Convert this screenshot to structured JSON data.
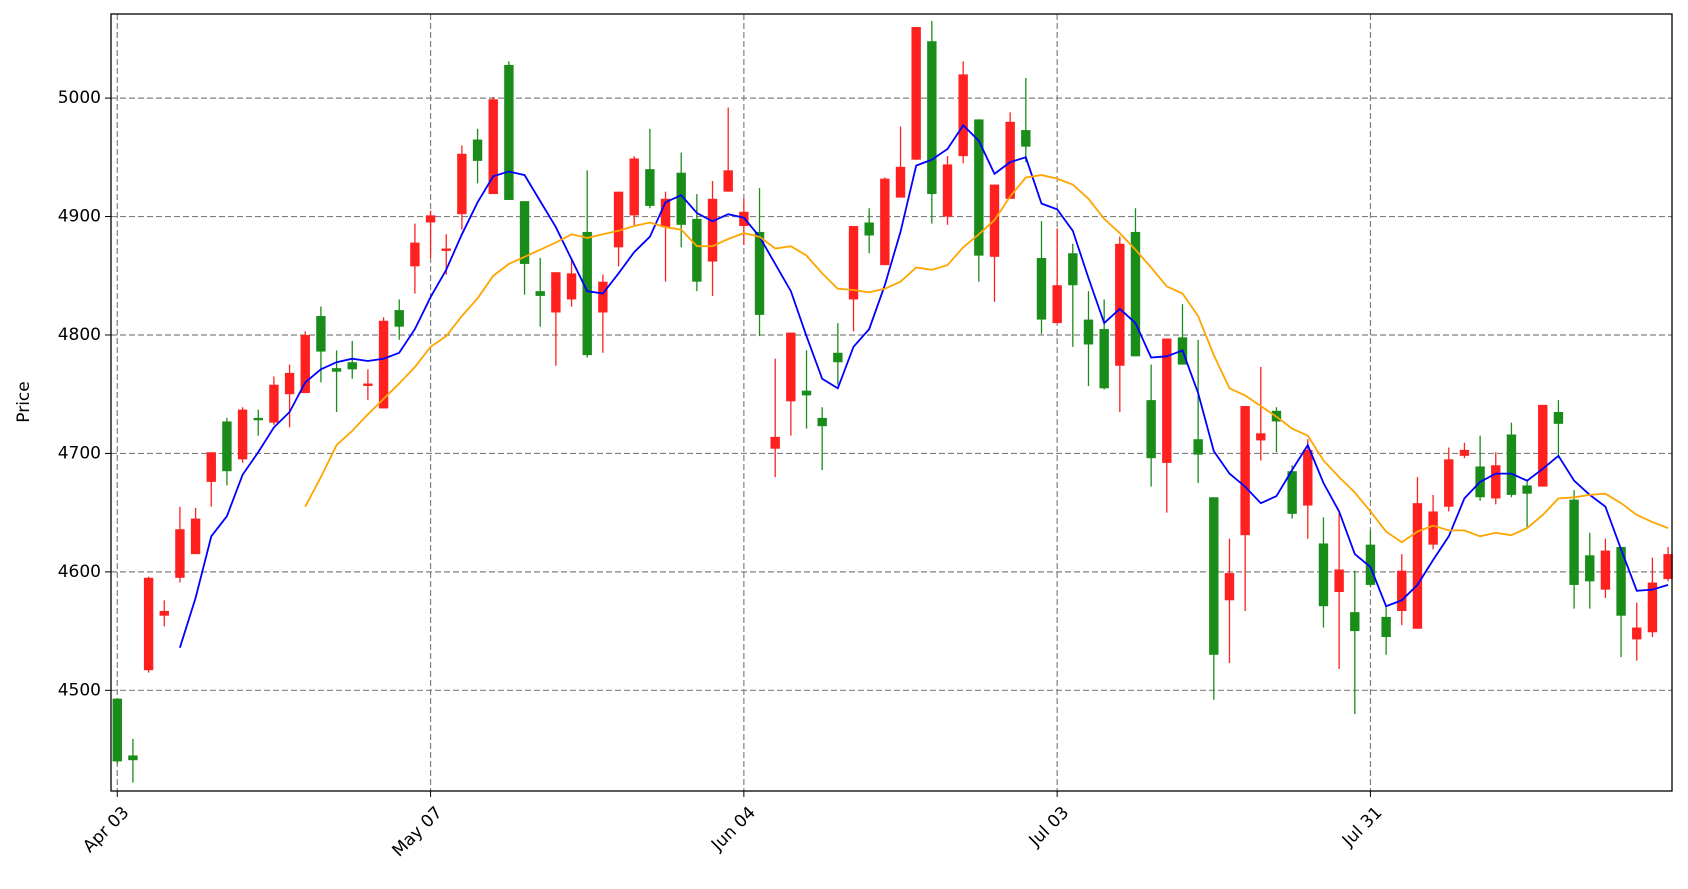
{
  "chart_data": {
    "type": "candlestick",
    "y_label": "Price",
    "xlim": [
      -0.4,
      99.25
    ],
    "xticks": [
      {
        "value": 0,
        "label": "Apr 03"
      },
      {
        "value": 20,
        "label": "May 07"
      },
      {
        "value": 40,
        "label": "Jun 04"
      },
      {
        "value": 60,
        "label": "Jul 03"
      },
      {
        "value": 80,
        "label": "Jul 31"
      }
    ],
    "ylim": [
      4415,
      5071
    ],
    "yticks": [
      4500,
      4600,
      4700,
      4800,
      4900,
      5000
    ],
    "grid": true,
    "up_color": "#ff2020",
    "down_color": "#1a8c1a",
    "open": [
      4493,
      4445,
      4517,
      4563,
      4595,
      4615,
      4676,
      4727,
      4695,
      4730,
      4726,
      4750,
      4751,
      4816,
      4772,
      4777,
      4757,
      4738,
      4821,
      4858,
      4895,
      4871,
      4902,
      4965,
      4919,
      5028,
      4913,
      4837,
      4819,
      4830,
      4887,
      4819,
      4874,
      4901,
      4940,
      4891,
      4937,
      4898,
      4862,
      4921,
      4892,
      4887,
      4704,
      4744,
      4753,
      4730,
      4785,
      4830,
      4895,
      4859,
      4916,
      4948,
      5048,
      4900,
      4951,
      4982,
      4866,
      4915,
      4973,
      4865,
      4810,
      4869,
      4813,
      4805,
      4774,
      4887,
      4745,
      4692,
      4798,
      4712,
      4663,
      4576,
      4631,
      4711,
      4736,
      4685,
      4656,
      4624,
      4583,
      4566,
      4623,
      4562,
      4567,
      4552,
      4623,
      4655,
      4698,
      4689,
      4662,
      4716,
      4673,
      4672,
      4735,
      4661,
      4614,
      4585,
      4621,
      4543,
      4549,
      4594
    ],
    "high": [
      4493,
      4459,
      4596,
      4576,
      4655,
      4654,
      4701,
      4730,
      4739,
      4737,
      4765,
      4775,
      4803,
      4824,
      4787,
      4795,
      4771,
      4815,
      4830,
      4894,
      4905,
      4885,
      4960,
      4974,
      5001,
      5031,
      4913,
      4865,
      4853,
      4865,
      4939,
      4851,
      4921,
      4951,
      4974,
      4921,
      4954,
      4919,
      4930,
      4992,
      4915,
      4924,
      4780,
      4802,
      4787,
      4739,
      4810,
      4892,
      4907,
      4933,
      4976,
      5060,
      5065,
      4951,
      5031,
      4982,
      4927,
      4988,
      5017,
      4896,
      4890,
      4877,
      4837,
      4830,
      4883,
      4907,
      4775,
      4797,
      4826,
      4796,
      4663,
      4628,
      4740,
      4773,
      4739,
      4690,
      4712,
      4646,
      4650,
      4601,
      4635,
      4571,
      4615,
      4680,
      4665,
      4705,
      4709,
      4715,
      4701,
      4726,
      4678,
      4741,
      4745,
      4669,
      4633,
      4628,
      4621,
      4574,
      4612,
      4621
    ],
    "low": [
      4438,
      4422,
      4515,
      4554,
      4591,
      4615,
      4655,
      4673,
      4692,
      4715,
      4724,
      4722,
      4751,
      4760,
      4735,
      4763,
      4745,
      4738,
      4796,
      4835,
      4865,
      4851,
      4889,
      4928,
      4919,
      4914,
      4834,
      4807,
      4774,
      4824,
      4781,
      4785,
      4858,
      4892,
      4907,
      4845,
      4874,
      4837,
      4833,
      4921,
      4876,
      4799,
      4680,
      4715,
      4721,
      4686,
      4758,
      4803,
      4869,
      4859,
      4916,
      4948,
      4894,
      4893,
      4945,
      4845,
      4828,
      4915,
      4946,
      4801,
      4810,
      4790,
      4757,
      4754,
      4735,
      4782,
      4672,
      4650,
      4775,
      4675,
      4492,
      4523,
      4567,
      4694,
      4701,
      4645,
      4628,
      4553,
      4518,
      4480,
      4587,
      4530,
      4555,
      4552,
      4619,
      4651,
      4696,
      4660,
      4657,
      4663,
      4637,
      4672,
      4696,
      4569,
      4569,
      4578,
      4528,
      4525,
      4545,
      4592
    ],
    "close": [
      4440,
      4441,
      4595,
      4567,
      4636,
      4645,
      4701,
      4685,
      4737,
      4728,
      4758,
      4768,
      4800,
      4786,
      4769,
      4771,
      4759,
      4812,
      4807,
      4878,
      4901,
      4873,
      4953,
      4947,
      4999,
      4914,
      4860,
      4833,
      4853,
      4852,
      4783,
      4845,
      4921,
      4949,
      4909,
      4915,
      4893,
      4845,
      4915,
      4939,
      4904,
      4817,
      4714,
      4802,
      4749,
      4723,
      4777,
      4892,
      4884,
      4932,
      4942,
      5060,
      4919,
      4944,
      5020,
      4867,
      4927,
      4980,
      4959,
      4813,
      4842,
      4842,
      4792,
      4755,
      4877,
      4782,
      4696,
      4797,
      4775,
      4699,
      4530,
      4599,
      4740,
      4717,
      4727,
      4649,
      4703,
      4571,
      4602,
      4550,
      4589,
      4545,
      4601,
      4658,
      4651,
      4695,
      4703,
      4663,
      4690,
      4665,
      4666,
      4741,
      4725,
      4589,
      4592,
      4618,
      4563,
      4553,
      4591,
      4615
    ],
    "series": [
      {
        "color": "#0000ff",
        "values": [
          null,
          null,
          null,
          null,
          4536,
          4578,
          4630,
          4647,
          4682,
          4701,
          4722,
          4735,
          4760,
          4771,
          4777,
          4780,
          4778,
          4780,
          4785,
          4805,
          4832,
          4855,
          4885,
          4912,
          4934,
          4938,
          4935,
          4913,
          4891,
          4864,
          4837,
          4835,
          4852,
          4870,
          4883,
          4912,
          4918,
          4903,
          4896,
          4902,
          4899,
          4883,
          4860,
          4837,
          4799,
          4763,
          4755,
          4790,
          4805,
          4842,
          4887,
          4943,
          4948,
          4957,
          4977,
          4964,
          4936,
          4946,
          4950,
          4911,
          4906,
          4888,
          4848,
          4810,
          4822,
          4810,
          4781,
          4782,
          4787,
          4751,
          4702,
          4683,
          4672,
          4658,
          4664,
          4686,
          4707,
          4675,
          4651,
          4615,
          4604,
          4571,
          4576,
          4589,
          4610,
          4630,
          4662,
          4676,
          4683,
          4683,
          4677,
          4687,
          4698,
          4677,
          4665,
          4655,
          4619,
          4584,
          4585,
          4589
        ]
      },
      {
        "color": "#ffa500",
        "values": [
          null,
          null,
          null,
          null,
          null,
          null,
          null,
          null,
          null,
          null,
          null,
          null,
          4655,
          4680,
          4707,
          4719,
          4733,
          4746,
          4759,
          4773,
          4790,
          4799,
          4816,
          4831,
          4850,
          4860,
          4866,
          4872,
          4878,
          4885,
          4882,
          4885,
          4888,
          4892,
          4895,
          4891,
          4889,
          4875,
          4875,
          4881,
          4886,
          4883,
          4873,
          4875,
          4867,
          4852,
          4839,
          4838,
          4836,
          4839,
          4845,
          4857,
          4855,
          4859,
          4874,
          4885,
          4897,
          4917,
          4933,
          4935,
          4932,
          4927,
          4915,
          4898,
          4886,
          4872,
          4857,
          4841,
          4835,
          4816,
          4783,
          4755,
          4749,
          4740,
          4731,
          4721,
          4715,
          4694,
          4680,
          4667,
          4651,
          4634,
          4625,
          4634,
          4639,
          4635,
          4635,
          4630,
          4633,
          4631,
          4637,
          4648,
          4662,
          4663,
          4665,
          4666,
          4658,
          4648,
          4642,
          4637
        ]
      }
    ]
  }
}
